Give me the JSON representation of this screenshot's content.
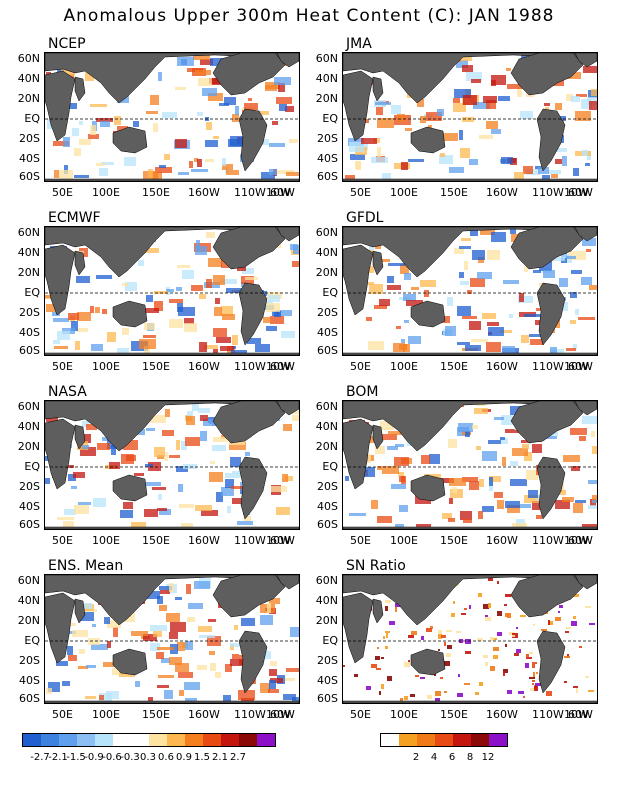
{
  "title": "Anomalous Upper 300m Heat Content (C): JAN 1988",
  "panels": [
    {
      "name": "NCEP"
    },
    {
      "name": "JMA"
    },
    {
      "name": "ECMWF"
    },
    {
      "name": "GFDL"
    },
    {
      "name": "NASA"
    },
    {
      "name": "BOM"
    },
    {
      "name": "ENS. Mean"
    },
    {
      "name": "SN Ratio"
    }
  ],
  "lat_labels": [
    "60N",
    "40N",
    "20N",
    "EQ",
    "20S",
    "40S",
    "60S"
  ],
  "lon_labels": [
    "50E",
    "100E",
    "150E",
    "160W",
    "110W",
    "60W",
    "10W"
  ],
  "anomaly_colorbar": {
    "colors": [
      "#1f5fd0",
      "#3b82e0",
      "#5fa0ee",
      "#8cc0f5",
      "#b8e4fb",
      "#ffffff",
      "#ffffff",
      "#fde3a0",
      "#fdb850",
      "#f57f1f",
      "#e84a14",
      "#c4150e",
      "#8b0a08",
      "#8b10c8"
    ],
    "labels": [
      "-2.7",
      "-2.1",
      "-1.5",
      "-0.9",
      "-0.6",
      "-0.3",
      "0.3",
      "0.6",
      "0.9",
      "1.5",
      "2.1",
      "2.7"
    ]
  },
  "ratio_colorbar": {
    "colors": [
      "#ffffff",
      "#f5a020",
      "#f07a18",
      "#e84a14",
      "#c4150e",
      "#8b0a08",
      "#8b10c8"
    ],
    "labels": [
      "2",
      "4",
      "6",
      "8",
      "12"
    ]
  },
  "colors": {
    "land": "#5e5e5e",
    "background": "#ffffff"
  }
}
